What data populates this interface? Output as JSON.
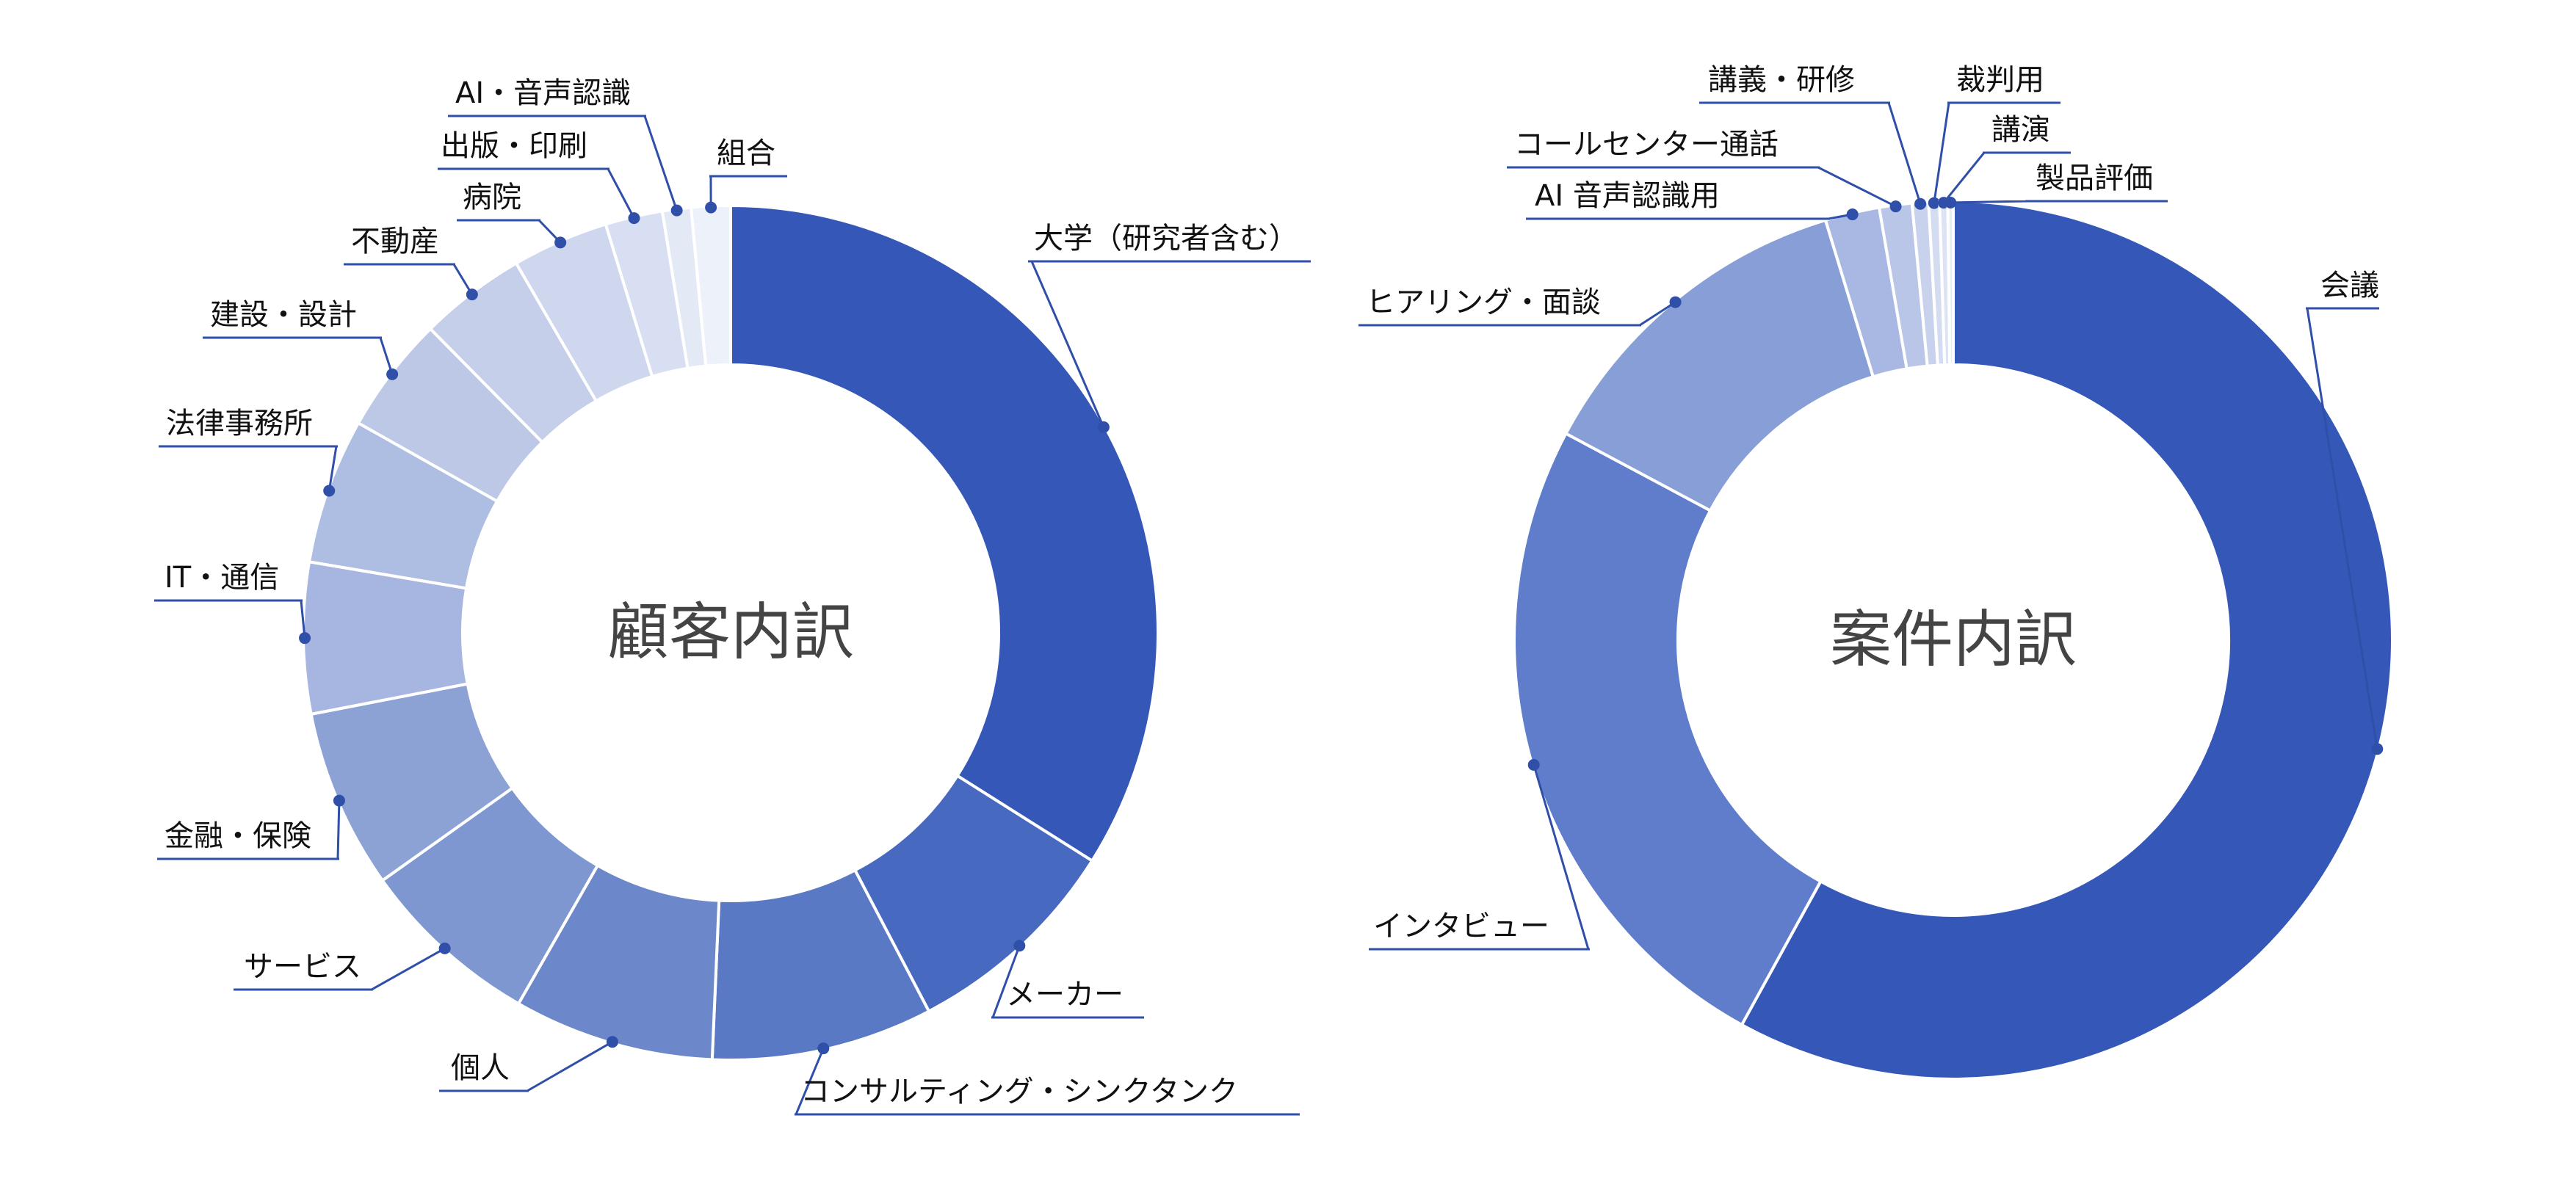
{
  "chart_data": [
    {
      "type": "pie",
      "title": "顧客内訳",
      "categories": [
        "大学（研究者含む）",
        "メーカー",
        "コンサルティング・シンクタンク",
        "個人",
        "サービス",
        "金融・保険",
        "IT・通信",
        "法律事務所",
        "建設・設計",
        "不動産",
        "病院",
        "出版・印刷",
        "AI・音声認識",
        "組合"
      ],
      "values": [
        34.5,
        8.5,
        8.5,
        7.7,
        7.0,
        6.9,
        5.8,
        5.6,
        4.5,
        4.1,
        3.7,
        2.2,
        1.1,
        1.5
      ],
      "colors": [
        "#3558b8",
        "#4869c0",
        "#5a79c5",
        "#6c88ca",
        "#7e97d0",
        "#8ca2d5",
        "#a6b6e0",
        "#aebde2",
        "#bcc8e6",
        "#c5cfea",
        "#ced7ee",
        "#d8dff2",
        "#e4e9f6",
        "#edf1fa"
      ]
    },
    {
      "type": "pie",
      "title": "案件内訳",
      "categories": [
        "会議",
        "インタビュー",
        "ヒアリング・面談",
        "AI 音声認識用",
        "コールセンター通話",
        "講義・研修",
        "裁判用",
        "講演",
        "製品評価"
      ],
      "values": [
        58.0,
        24.8,
        12.5,
        2.0,
        1.2,
        0.6,
        0.4,
        0.3,
        0.2
      ],
      "colors": [
        "#3558b8",
        "#5f7dca",
        "#889ed6",
        "#a8b8e3",
        "#b9c6e8",
        "#c8d2ed",
        "#d4dcf1",
        "#dde3f4",
        "#e8ecf8"
      ]
    }
  ]
}
